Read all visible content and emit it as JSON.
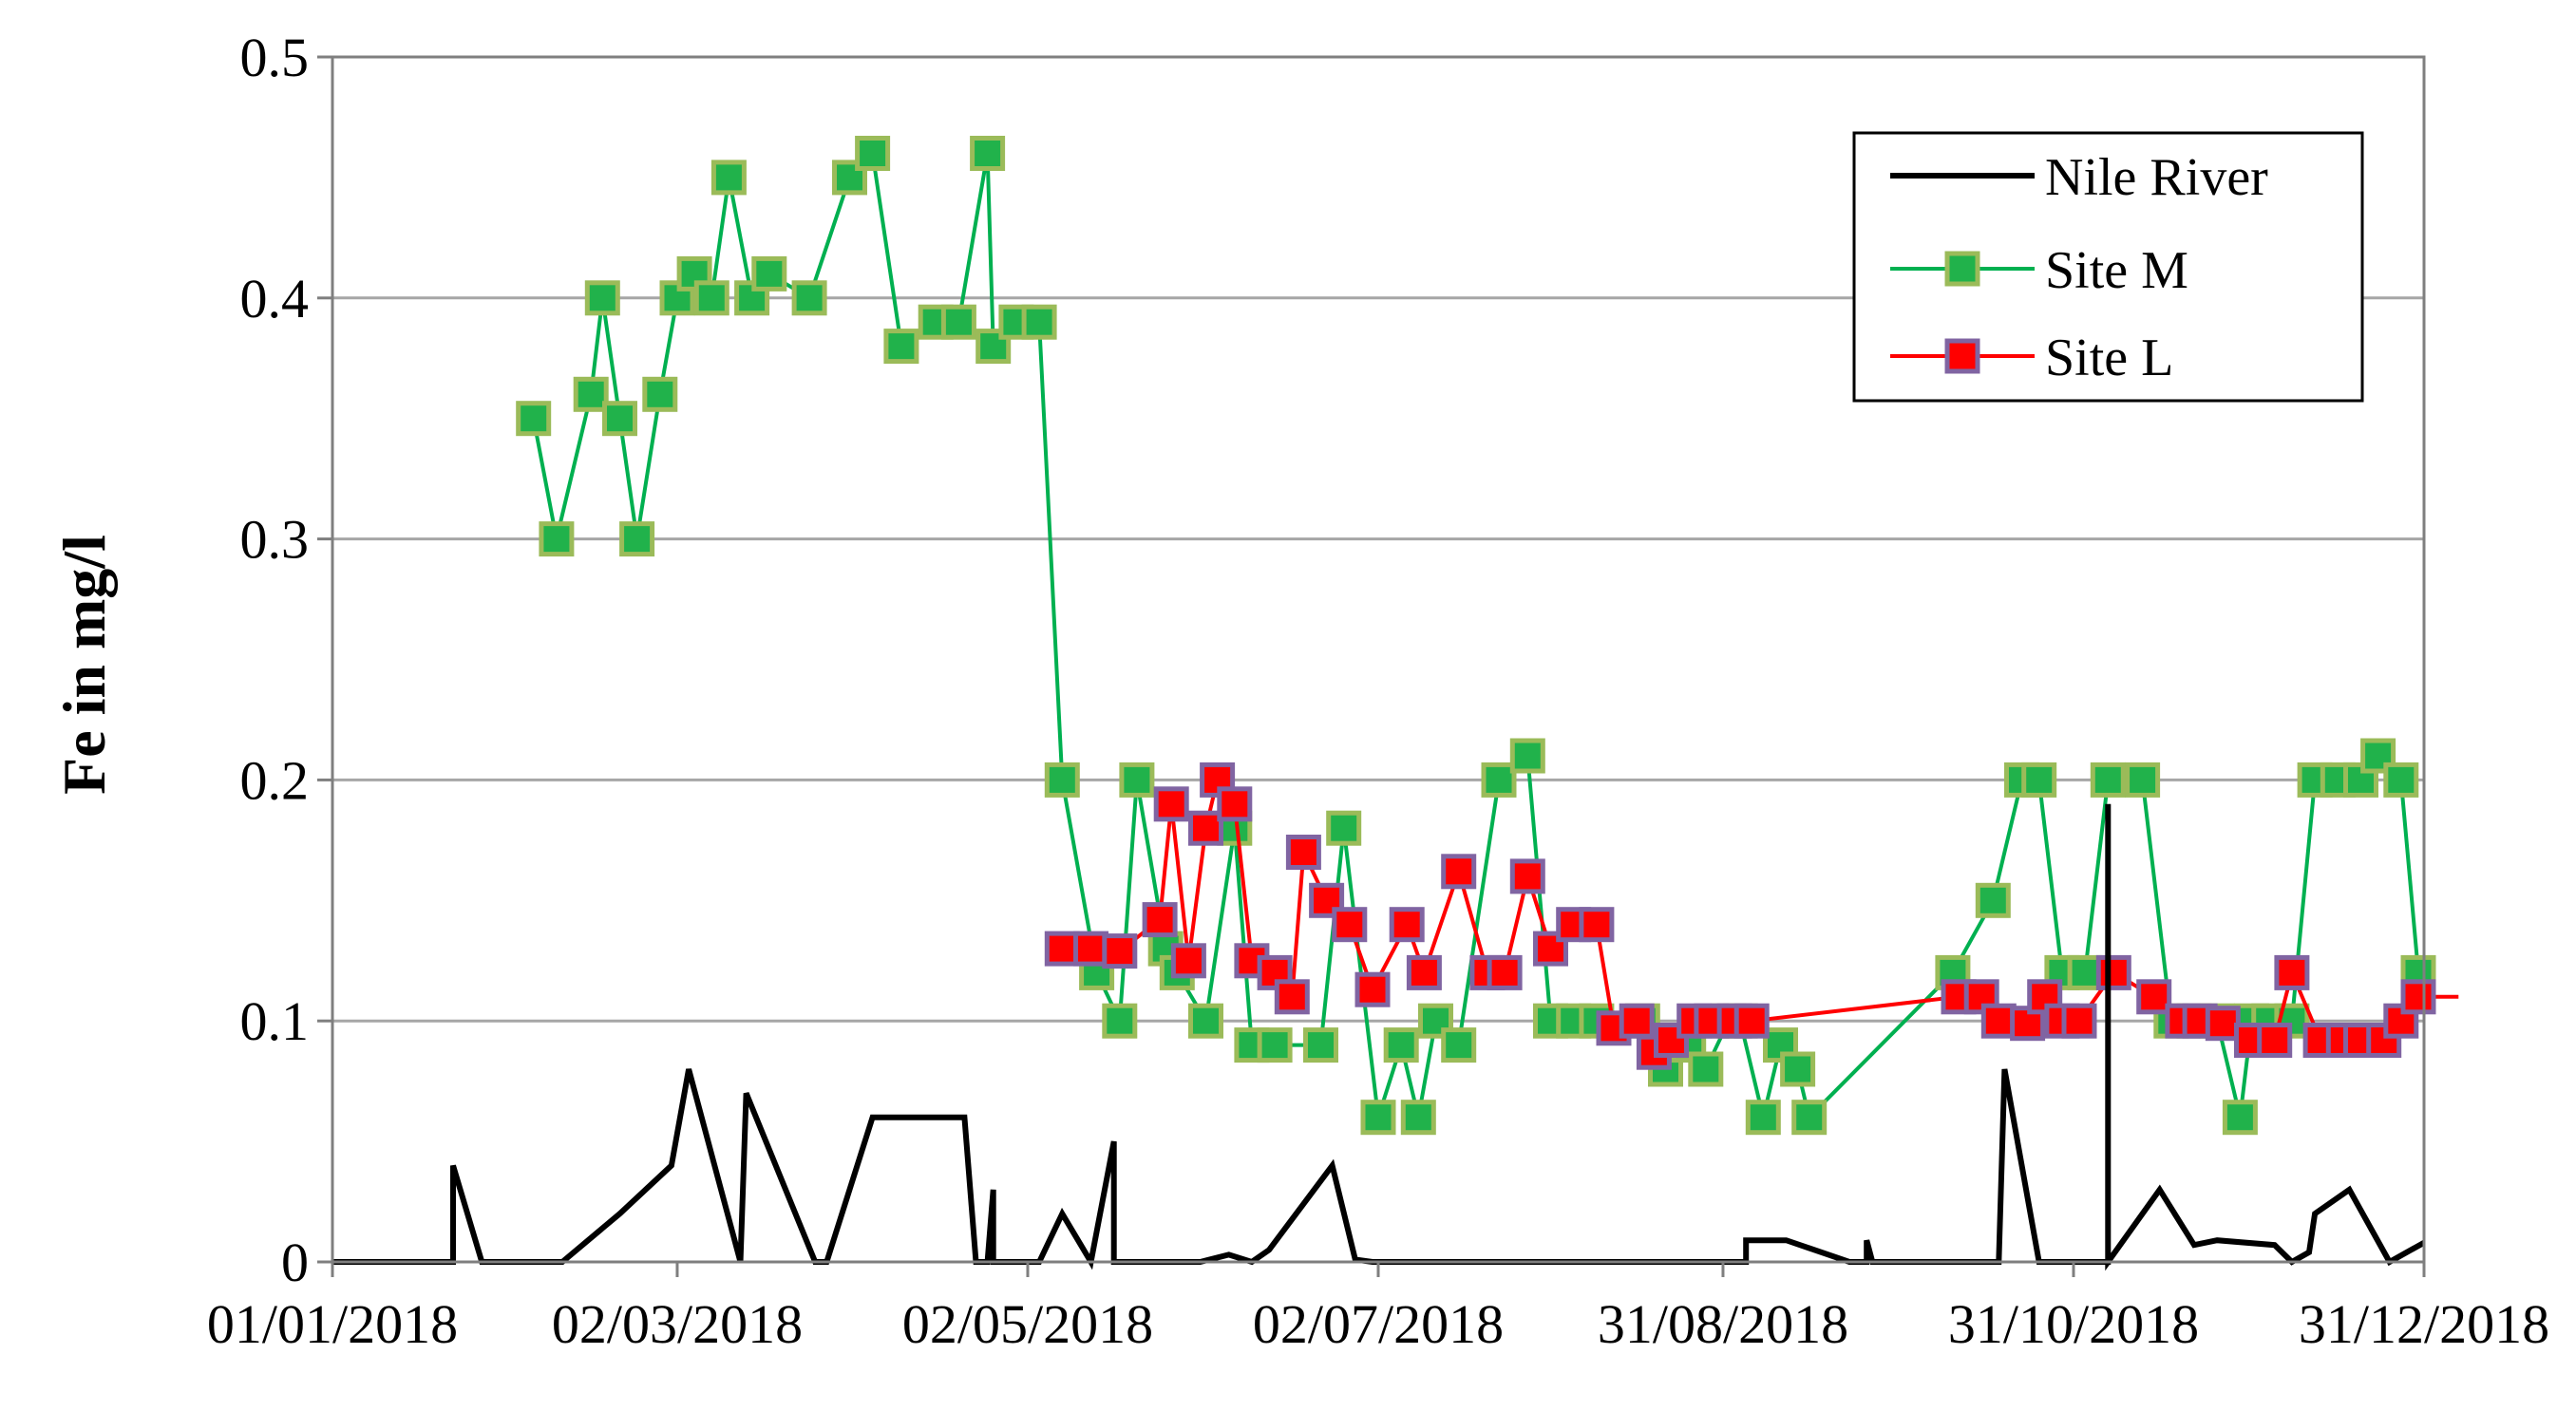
{
  "chart_data": {
    "type": "line",
    "title": "",
    "xlabel": "",
    "ylabel": "Fe in mg/l",
    "ylim": [
      0,
      0.5
    ],
    "yticks": [
      0,
      0.1,
      0.2,
      0.3,
      0.4,
      0.5
    ],
    "ytick_labels": [
      "0",
      "0.1",
      "0.2",
      "0.3",
      "0.4",
      "0.5"
    ],
    "xlim": [
      "2018-01-01",
      "2018-12-31"
    ],
    "xtick_labels": [
      "01/01/2018",
      "02/03/2018",
      "02/05/2018",
      "02/07/2018",
      "31/08/2018",
      "31/10/2018",
      "31/12/2018"
    ],
    "xtick_dates": [
      "2018-01-01",
      "2018-03-02",
      "2018-05-02",
      "2018-07-02",
      "2018-08-31",
      "2018-10-31",
      "2018-12-31"
    ],
    "grid": "horizontal",
    "legend_position": "top-right",
    "series": [
      {
        "name": "Nile River",
        "color": "#000000",
        "marker": "none",
        "points": [
          [
            "2018-01-01",
            0
          ],
          [
            "2018-01-22",
            0
          ],
          [
            "2018-01-22",
            0.04
          ],
          [
            "2018-01-27",
            0
          ],
          [
            "2018-02-10",
            0
          ],
          [
            "2018-02-20",
            0.02
          ],
          [
            "2018-03-01",
            0.04
          ],
          [
            "2018-03-04",
            0.08
          ],
          [
            "2018-03-13",
            0
          ],
          [
            "2018-03-14",
            0.07
          ],
          [
            "2018-03-26",
            0
          ],
          [
            "2018-03-28",
            0
          ],
          [
            "2018-04-05",
            0.06
          ],
          [
            "2018-04-21",
            0.06
          ],
          [
            "2018-04-23",
            0
          ],
          [
            "2018-04-25",
            0
          ],
          [
            "2018-04-26",
            0.03
          ],
          [
            "2018-04-26",
            0
          ],
          [
            "2018-05-04",
            0
          ],
          [
            "2018-05-08",
            0.02
          ],
          [
            "2018-05-13",
            0
          ],
          [
            "2018-05-17",
            0.05
          ],
          [
            "2018-05-17",
            0
          ],
          [
            "2018-06-01",
            0
          ],
          [
            "2018-06-06",
            0.003
          ],
          [
            "2018-06-10",
            0
          ],
          [
            "2018-06-13",
            0.005
          ],
          [
            "2018-06-24",
            0.04
          ],
          [
            "2018-06-28",
            0.001
          ],
          [
            "2018-07-01",
            0
          ],
          [
            "2018-08-30",
            0
          ],
          [
            "2018-09-04",
            0
          ],
          [
            "2018-09-04",
            0.009
          ],
          [
            "2018-09-11",
            0.009
          ],
          [
            "2018-09-22",
            0
          ],
          [
            "2018-09-25",
            0
          ],
          [
            "2018-09-25",
            0.009
          ],
          [
            "2018-09-26",
            0
          ],
          [
            "2018-10-18",
            0
          ],
          [
            "2018-10-19",
            0.08
          ],
          [
            "2018-10-25",
            0
          ],
          [
            "2018-11-06",
            0
          ],
          [
            "2018-11-06",
            0.19
          ],
          [
            "2018-11-06",
            0
          ],
          [
            "2018-11-15",
            0.03
          ],
          [
            "2018-11-21",
            0.007
          ],
          [
            "2018-11-25",
            0.009
          ],
          [
            "2018-12-05",
            0.007
          ],
          [
            "2018-12-08",
            0
          ],
          [
            "2018-12-11",
            0.004
          ],
          [
            "2018-12-12",
            0.02
          ],
          [
            "2018-12-18",
            0.03
          ],
          [
            "2018-12-25",
            0
          ],
          [
            "2018-12-31",
            0.008
          ]
        ]
      },
      {
        "name": "Site M",
        "color": "#00b050",
        "marker": "square",
        "marker_fill": "#21b24b",
        "marker_edge": "#9bbb59",
        "points": [
          [
            "2018-02-05",
            0.35
          ],
          [
            "2018-02-09",
            0.3
          ],
          [
            "2018-02-15",
            0.36
          ],
          [
            "2018-02-17",
            0.4
          ],
          [
            "2018-02-20",
            0.35
          ],
          [
            "2018-02-23",
            0.3
          ],
          [
            "2018-02-27",
            0.36
          ],
          [
            "2018-03-02",
            0.4
          ],
          [
            "2018-03-05",
            0.41
          ],
          [
            "2018-03-08",
            0.4
          ],
          [
            "2018-03-11",
            0.45
          ],
          [
            "2018-03-15",
            0.4
          ],
          [
            "2018-03-18",
            0.41
          ],
          [
            "2018-03-25",
            0.4
          ],
          [
            "2018-04-01",
            0.45
          ],
          [
            "2018-04-05",
            0.46
          ],
          [
            "2018-04-10",
            0.38
          ],
          [
            "2018-04-16",
            0.39
          ],
          [
            "2018-04-20",
            0.39
          ],
          [
            "2018-04-25",
            0.46
          ],
          [
            "2018-04-26",
            0.38
          ],
          [
            "2018-04-30",
            0.39
          ],
          [
            "2018-05-04",
            0.39
          ],
          [
            "2018-05-08",
            0.2
          ],
          [
            "2018-05-14",
            0.12
          ],
          [
            "2018-05-18",
            0.1
          ],
          [
            "2018-05-21",
            0.2
          ],
          [
            "2018-05-26",
            0.13
          ],
          [
            "2018-05-28",
            0.12
          ],
          [
            "2018-06-02",
            0.1
          ],
          [
            "2018-06-07",
            0.18
          ],
          [
            "2018-06-10",
            0.09
          ],
          [
            "2018-06-14",
            0.09
          ],
          [
            "2018-06-22",
            0.09
          ],
          [
            "2018-06-26",
            0.18
          ],
          [
            "2018-07-02",
            0.06
          ],
          [
            "2018-07-06",
            0.09
          ],
          [
            "2018-07-09",
            0.06
          ],
          [
            "2018-07-12",
            0.1
          ],
          [
            "2018-07-16",
            0.09
          ],
          [
            "2018-07-23",
            0.2
          ],
          [
            "2018-07-28",
            0.21
          ],
          [
            "2018-08-01",
            0.1
          ],
          [
            "2018-08-05",
            0.1
          ],
          [
            "2018-08-09",
            0.1
          ],
          [
            "2018-08-17",
            0.1
          ],
          [
            "2018-08-21",
            0.08
          ],
          [
            "2018-08-25",
            0.09
          ],
          [
            "2018-08-28",
            0.08
          ],
          [
            "2018-09-01",
            0.1
          ],
          [
            "2018-09-03",
            0.1
          ],
          [
            "2018-09-07",
            0.06
          ],
          [
            "2018-09-10",
            0.09
          ],
          [
            "2018-09-13",
            0.08
          ],
          [
            "2018-09-15",
            0.06
          ],
          [
            "2018-10-10",
            0.12
          ],
          [
            "2018-10-17",
            0.15
          ],
          [
            "2018-10-22",
            0.2
          ],
          [
            "2018-10-25",
            0.2
          ],
          [
            "2018-10-29",
            0.12
          ],
          [
            "2018-11-02",
            0.12
          ],
          [
            "2018-11-06",
            0.2
          ],
          [
            "2018-11-12",
            0.2
          ],
          [
            "2018-11-17",
            0.1
          ],
          [
            "2018-11-21",
            0.1
          ],
          [
            "2018-11-25",
            0.1
          ],
          [
            "2018-11-29",
            0.06
          ],
          [
            "2018-12-01",
            0.1
          ],
          [
            "2018-12-04",
            0.1
          ],
          [
            "2018-12-08",
            0.1
          ],
          [
            "2018-12-12",
            0.2
          ],
          [
            "2018-12-16",
            0.2
          ],
          [
            "2018-12-20",
            0.2
          ],
          [
            "2018-12-23",
            0.21
          ],
          [
            "2018-12-27",
            0.2
          ],
          [
            "2018-12-30",
            0.12
          ]
        ]
      },
      {
        "name": "Site L",
        "color": "#ff0000",
        "marker": "square",
        "marker_fill": "#ff0000",
        "marker_edge": "#8064a2",
        "points": [
          [
            "2018-05-08",
            0.13
          ],
          [
            "2018-05-13",
            0.13
          ],
          [
            "2018-05-18",
            0.129
          ],
          [
            "2018-05-25",
            0.142
          ],
          [
            "2018-05-27",
            0.19
          ],
          [
            "2018-05-30",
            0.125
          ],
          [
            "2018-06-02",
            0.18
          ],
          [
            "2018-06-04",
            0.2
          ],
          [
            "2018-06-07",
            0.19
          ],
          [
            "2018-06-10",
            0.125
          ],
          [
            "2018-06-14",
            0.12
          ],
          [
            "2018-06-17",
            0.11
          ],
          [
            "2018-06-19",
            0.17
          ],
          [
            "2018-06-23",
            0.15
          ],
          [
            "2018-06-27",
            0.14
          ],
          [
            "2018-07-01",
            0.113
          ],
          [
            "2018-07-07",
            0.14
          ],
          [
            "2018-07-10",
            0.12
          ],
          [
            "2018-07-16",
            0.162
          ],
          [
            "2018-07-21",
            0.12
          ],
          [
            "2018-07-24",
            0.12
          ],
          [
            "2018-07-28",
            0.16
          ],
          [
            "2018-08-01",
            0.13
          ],
          [
            "2018-08-05",
            0.14
          ],
          [
            "2018-08-09",
            0.14
          ],
          [
            "2018-08-12",
            0.097
          ],
          [
            "2018-08-16",
            0.1
          ],
          [
            "2018-08-19",
            0.087
          ],
          [
            "2018-08-22",
            0.092
          ],
          [
            "2018-08-26",
            0.1
          ],
          [
            "2018-08-29",
            0.1
          ],
          [
            "2018-09-02",
            0.1
          ],
          [
            "2018-09-05",
            0.1
          ],
          [
            "2018-10-11",
            0.11
          ],
          [
            "2018-10-15",
            0.11
          ],
          [
            "2018-10-18",
            0.1
          ],
          [
            "2018-10-23",
            0.099
          ],
          [
            "2018-10-26",
            0.11
          ],
          [
            "2018-10-29",
            0.1
          ],
          [
            "2018-11-01",
            0.1
          ],
          [
            "2018-11-07",
            0.12
          ],
          [
            "2018-11-14",
            0.11
          ],
          [
            "2018-11-19",
            0.1
          ],
          [
            "2018-11-22",
            0.1
          ],
          [
            "2018-11-26",
            0.099
          ],
          [
            "2018-12-01",
            0.092
          ],
          [
            "2018-12-05",
            0.092
          ],
          [
            "2018-12-08",
            0.12
          ],
          [
            "2018-12-13",
            0.092
          ],
          [
            "2018-12-17",
            0.092
          ],
          [
            "2018-12-20",
            0.092
          ],
          [
            "2018-12-24",
            0.092
          ],
          [
            "2018-12-27",
            0.1
          ],
          [
            "2018-12-30",
            0.11
          ],
          [
            "2019-01-03",
            0.11
          ],
          [
            "2019-01-06",
            0.11
          ]
        ]
      }
    ]
  }
}
